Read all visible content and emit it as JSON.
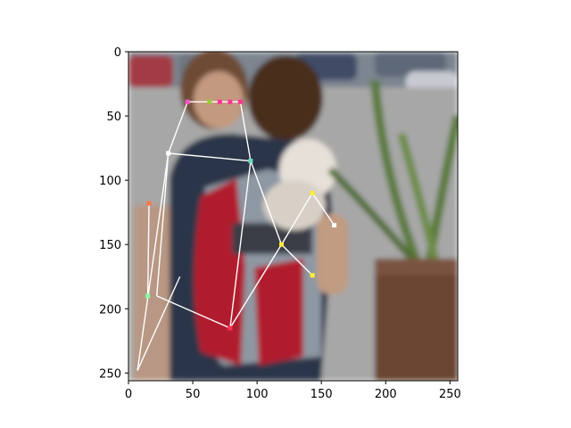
{
  "chart_data": {
    "type": "scatter",
    "title": "",
    "xlabel": "",
    "ylabel": "",
    "xlim": [
      0,
      256
    ],
    "ylim": [
      256,
      0
    ],
    "x_ticks": [
      0,
      50,
      100,
      150,
      200,
      250
    ],
    "y_ticks": [
      0,
      50,
      100,
      150,
      200,
      250
    ],
    "background": "blurred photograph of a person wearing a red and grey backpack carrying a small white dog, parking lot and potted plant in background",
    "colors": {
      "edge": "#ffffff",
      "photo_sky": "#b9b9b9",
      "photo_ground": "#8c8c8c",
      "backpack_red": "#b01c2e",
      "backpack_grey": "#8e98a3",
      "shirt": "#2c3548",
      "plant_pot": "#6b4431",
      "plant_green": "#5a7a3a"
    },
    "keypoints": [
      {
        "id": "eye-dot-1",
        "x": 46,
        "y": 39,
        "color": "#ff55cc"
      },
      {
        "id": "eye-dot-2",
        "x": 63,
        "y": 39,
        "color": "#99cc33"
      },
      {
        "id": "eye-dot-3",
        "x": 71,
        "y": 39,
        "color": "#ff3399"
      },
      {
        "id": "eye-dot-4",
        "x": 79,
        "y": 39,
        "color": "#ff3399"
      },
      {
        "id": "eye-dot-5",
        "x": 87,
        "y": 39,
        "color": "#ff3399"
      },
      {
        "id": "shoulder-left",
        "x": 31,
        "y": 79,
        "color": "#ffffff"
      },
      {
        "id": "shoulder-right",
        "x": 95,
        "y": 85,
        "color": "#66ddbb"
      },
      {
        "id": "left-mid",
        "x": 16,
        "y": 118,
        "color": "#ff7744"
      },
      {
        "id": "left-hip",
        "x": 15,
        "y": 190,
        "color": "#88ffaa"
      },
      {
        "id": "hip-center",
        "x": 79,
        "y": 215,
        "color": "#ff3355"
      },
      {
        "id": "elbow-right",
        "x": 143,
        "y": 110,
        "color": "#ffee33"
      },
      {
        "id": "center-chest",
        "x": 119,
        "y": 150,
        "color": "#ffee33"
      },
      {
        "id": "hand-right",
        "x": 160,
        "y": 135,
        "color": "#ffffff"
      },
      {
        "id": "wrist-right",
        "x": 143,
        "y": 174,
        "color": "#ffee33"
      }
    ],
    "skeleton": [
      [
        [
          46,
          39
        ],
        [
          87,
          39
        ]
      ],
      [
        [
          46,
          39
        ],
        [
          31,
          79
        ]
      ],
      [
        [
          87,
          39
        ],
        [
          95,
          85
        ]
      ],
      [
        [
          31,
          79
        ],
        [
          95,
          85
        ]
      ],
      [
        [
          31,
          79
        ],
        [
          22,
          190
        ]
      ],
      [
        [
          16,
          118
        ],
        [
          15,
          190
        ]
      ],
      [
        [
          22,
          190
        ],
        [
          79,
          215
        ]
      ],
      [
        [
          95,
          85
        ],
        [
          79,
          215
        ]
      ],
      [
        [
          95,
          85
        ],
        [
          119,
          150
        ]
      ],
      [
        [
          79,
          215
        ],
        [
          119,
          150
        ]
      ],
      [
        [
          119,
          150
        ],
        [
          143,
          110
        ]
      ],
      [
        [
          143,
          110
        ],
        [
          160,
          135
        ]
      ],
      [
        [
          119,
          150
        ],
        [
          143,
          174
        ]
      ],
      [
        [
          31,
          79
        ],
        [
          7,
          248
        ]
      ],
      [
        [
          7,
          248
        ],
        [
          40,
          175
        ]
      ]
    ]
  }
}
